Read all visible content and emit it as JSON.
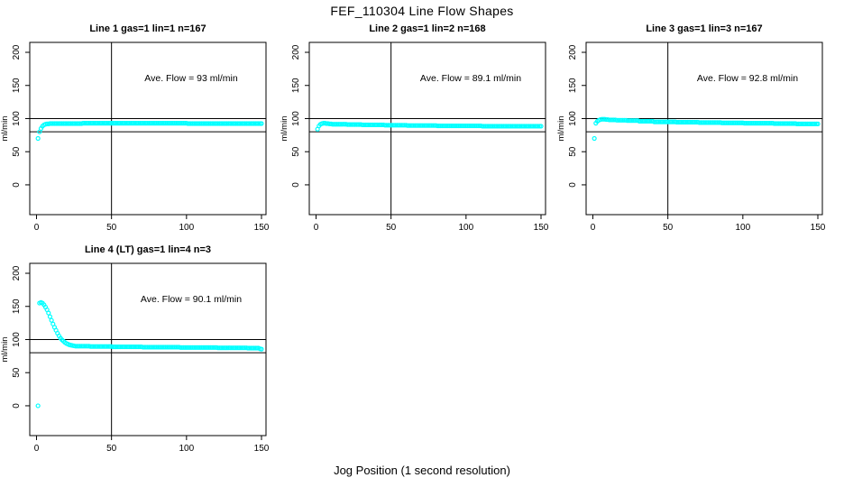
{
  "figure": {
    "title": "FEF_110304  Line Flow Shapes",
    "xlabel": "Jog Position (1 second resolution)",
    "background": "#FFFFFF"
  },
  "style": {
    "point_color": "#00FFFF",
    "axis_color": "#000000",
    "text_color": "#000000",
    "marker": "open-circle"
  },
  "chart_data": {
    "type": "scatter",
    "layout": "2x2 grid, 4 panels, shared axes style",
    "shared": {
      "ylabel": "ml/min",
      "x_ticks": [
        0,
        50,
        100,
        150
      ],
      "y_ticks": [
        0,
        50,
        100,
        150,
        200
      ],
      "x_range": [
        -4.5,
        153
      ],
      "y_range": [
        -45,
        215
      ],
      "hlines": [
        80,
        100
      ],
      "vline": 50,
      "grid": false
    },
    "panels": [
      {
        "title": "Line 1 gas=1 lin=1 n=167",
        "annotation": "Ave. Flow =  93  ml/min",
        "ave_flow": 93,
        "n": 167,
        "x_start": 1,
        "x_step": 1,
        "y": [
          70,
          80,
          85,
          88.5,
          90.5,
          91.5,
          92,
          92,
          92.5,
          92.5,
          92.5,
          92.5,
          92.5,
          92.5,
          92.5,
          92.5,
          92.5,
          92.5,
          92.5,
          92.5,
          92.5,
          92.5,
          92.5,
          92.5,
          92.5,
          92.5,
          92.5,
          92.5,
          92.5,
          92.5,
          93,
          93,
          93,
          93,
          93,
          93,
          93,
          93,
          93,
          93,
          93,
          93,
          93,
          93,
          93,
          93,
          93,
          93,
          93,
          93,
          93,
          93,
          93,
          93,
          93,
          93,
          93,
          93,
          93,
          93,
          93,
          93,
          93,
          93,
          93,
          93,
          93,
          93,
          93,
          93,
          93,
          93,
          93,
          93,
          93,
          93,
          93,
          93,
          93,
          93,
          93,
          93,
          93,
          93,
          93,
          93,
          93,
          93,
          93,
          93,
          93,
          93,
          93,
          93,
          93,
          93,
          93,
          93,
          93,
          93,
          92.5,
          92.5,
          92.5,
          92.5,
          92.5,
          92.5,
          92.5,
          92.5,
          92.5,
          92.5,
          92.5,
          92.5,
          92.5,
          92.5,
          92.5,
          92.5,
          92.5,
          92.5,
          92.5,
          92.5,
          92.5,
          92.5,
          92.5,
          92.5,
          92.5,
          92.5,
          92.5,
          92.5,
          92.5,
          92.5,
          92.5,
          92.5,
          92.5,
          92.5,
          92.5,
          92.5,
          92.5,
          92.5,
          92.5,
          92.5,
          92.5,
          92.5,
          92.5,
          92.5,
          92.5,
          92.5,
          92.5,
          92.5,
          92.5,
          92.5
        ]
      },
      {
        "title": "Line 2 gas=1 lin=2 n=168",
        "annotation": "Ave. Flow =  89.1  ml/min",
        "ave_flow": 89.1,
        "n": 168,
        "x_start": 1,
        "x_step": 1,
        "y": [
          84,
          89,
          91.5,
          92.5,
          93,
          93,
          92.5,
          92.5,
          92,
          92,
          91.5,
          91.5,
          91.5,
          91.5,
          91.5,
          91.5,
          91.5,
          91.5,
          91.5,
          91.5,
          91,
          91,
          91,
          91,
          91,
          91,
          91,
          91,
          91,
          91,
          90.5,
          90.5,
          90.5,
          90.5,
          90.5,
          90.5,
          90.5,
          90.5,
          90.5,
          90.5,
          90.5,
          90.5,
          90.5,
          90.5,
          90.5,
          90,
          90,
          90,
          90,
          90,
          90,
          90,
          90,
          90,
          90,
          90,
          90,
          90,
          90,
          90,
          89.5,
          89.5,
          89.5,
          89.5,
          89.5,
          89.5,
          89.5,
          89.5,
          89.5,
          89.5,
          89.5,
          89.5,
          89.5,
          89.5,
          89.5,
          89.5,
          89.5,
          89.5,
          89.5,
          89.5,
          89,
          89,
          89,
          89,
          89,
          89,
          89,
          89,
          89,
          89,
          89,
          89,
          89,
          89,
          89,
          89,
          89,
          89,
          89,
          89,
          89,
          89,
          89,
          89,
          89,
          89,
          89,
          89,
          89,
          89,
          88.5,
          88.5,
          88.5,
          88.5,
          88.5,
          88.5,
          88.5,
          88.5,
          88.5,
          88.5,
          88.5,
          88.5,
          88.5,
          88.5,
          88.5,
          88.5,
          88.5,
          88.5,
          88.5,
          88.5,
          88.5,
          88.5,
          88.5,
          88.5,
          88.5,
          88.5,
          88.5,
          88.5,
          88.5,
          88.5,
          88.5,
          88.5,
          88.5,
          88.5,
          88.5,
          88.5,
          88.5,
          88.5,
          88.5,
          88.5
        ]
      },
      {
        "title": "Line 3 gas=1 lin=3 n=167",
        "annotation": "Ave. Flow =  92.8  ml/min",
        "ave_flow": 92.8,
        "n": 167,
        "x_start": 1,
        "x_step": 1,
        "y": [
          70,
          93,
          96,
          97.5,
          98.5,
          99,
          99,
          99,
          98.5,
          98.5,
          98,
          98,
          98,
          98,
          98,
          97.5,
          97.5,
          97.5,
          97.5,
          97.5,
          97.5,
          97.5,
          97,
          97,
          97,
          97,
          97,
          97,
          97,
          97,
          96,
          96,
          96,
          96,
          96,
          96,
          96,
          96,
          96,
          96,
          95,
          95,
          95,
          95,
          95,
          95,
          95,
          95,
          95,
          95,
          95,
          95,
          95,
          95,
          95,
          94.5,
          94.5,
          94.5,
          94.5,
          94.5,
          94.5,
          94.5,
          94.5,
          94.5,
          94.5,
          94.5,
          94.5,
          94.5,
          94.5,
          94.5,
          94,
          94,
          94,
          94,
          94,
          94,
          94,
          94,
          94,
          94,
          94,
          94,
          94,
          94,
          94,
          93.5,
          93.5,
          93.5,
          93.5,
          93.5,
          93.5,
          93.5,
          93.5,
          93.5,
          93.5,
          93.5,
          93.5,
          93.5,
          93.5,
          93.5,
          93,
          93,
          93,
          93,
          93,
          93,
          93,
          93,
          93,
          93,
          93,
          93,
          93,
          93,
          93,
          93,
          93,
          93,
          93,
          93,
          92.5,
          92.5,
          92.5,
          92.5,
          92.5,
          92.5,
          92.5,
          92.5,
          92.5,
          92.5,
          92.5,
          92.5,
          92.5,
          92.5,
          92.5,
          92,
          92,
          92,
          92,
          92,
          92,
          92,
          92,
          92,
          92,
          92,
          92,
          92,
          92,
          92
        ]
      },
      {
        "title": "Line 4 (LT) gas=1 lin=4 n=3",
        "annotation": "Ave. Flow =  90.1  ml/min",
        "ave_flow": 90.1,
        "n": 3,
        "x_start": 1,
        "x_step": 1,
        "y": [
          0,
          155,
          156,
          155,
          152.5,
          149,
          145,
          140,
          134.5,
          129,
          123.5,
          118.5,
          114,
          109.5,
          105.5,
          102,
          99.5,
          97.5,
          95.5,
          94,
          93,
          92,
          91.5,
          91,
          90.5,
          90,
          90,
          90,
          90,
          90,
          90,
          90,
          90,
          90,
          90,
          89.5,
          89.5,
          89.5,
          89.5,
          89.5,
          89.5,
          89.5,
          89.5,
          89.5,
          89.5,
          89.5,
          89.5,
          89.5,
          89.5,
          89.5,
          89,
          89,
          89,
          89,
          89,
          89,
          89,
          89,
          89,
          89,
          89,
          89,
          89,
          89,
          89,
          89,
          89,
          89,
          89,
          89,
          88.5,
          88.5,
          88.5,
          88.5,
          88.5,
          88.5,
          88.5,
          88.5,
          88.5,
          88.5,
          88.5,
          88.5,
          88.5,
          88.5,
          88.5,
          88.5,
          88.5,
          88.5,
          88.5,
          88.5,
          88.5,
          88.5,
          88.5,
          88.5,
          88.5,
          88,
          88,
          88,
          88,
          88,
          88,
          88,
          88,
          88,
          88,
          88,
          88,
          88,
          88,
          88,
          88,
          88,
          88,
          88,
          88,
          88,
          88,
          88,
          88,
          88,
          87.5,
          87.5,
          87.5,
          87.5,
          87.5,
          87.5,
          87.5,
          87.5,
          87.5,
          87.5,
          87.5,
          87.5,
          87.5,
          87.5,
          87.5,
          87.5,
          87.5,
          87.5,
          87.5,
          87.5,
          87,
          87,
          87,
          87,
          87,
          87,
          87,
          87,
          86,
          85.5
        ]
      }
    ]
  }
}
